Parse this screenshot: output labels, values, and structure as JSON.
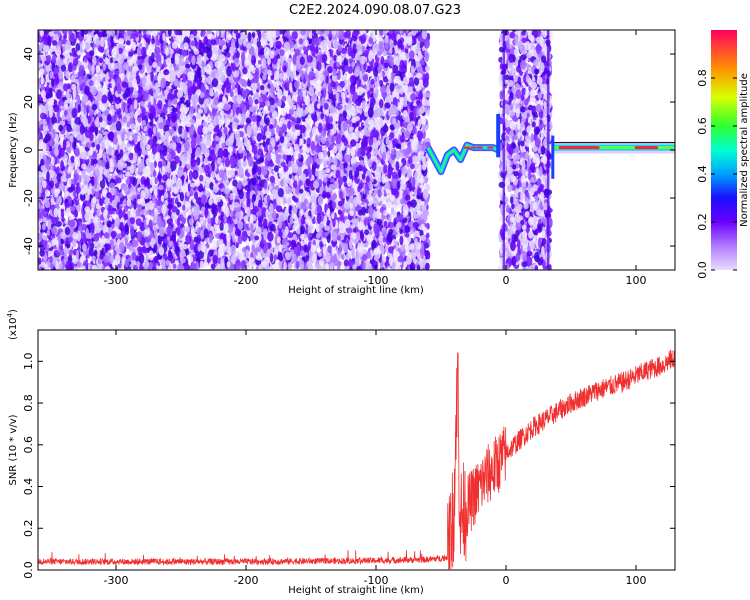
{
  "title": "C2E2.2024.090.08.07.G23",
  "colors": {
    "spectrogram_ramp": [
      "#c9b3ff",
      "#7a1fff",
      "#2a18ff",
      "#00a0ff",
      "#00ffd0",
      "#40ff40",
      "#ffff00",
      "#ff8000",
      "#ff0040"
    ],
    "snr_line": "#f03030"
  },
  "chart_data": [
    {
      "type": "heatmap",
      "name": "spectrogram",
      "xlabel": "Height of straight line (km)",
      "ylabel": "Frequency (Hz)",
      "xlim": [
        -360,
        130
      ],
      "ylim": [
        -50,
        50
      ],
      "xticks": [
        -300,
        -200,
        -100,
        0,
        100
      ],
      "yticks": [
        -40,
        -20,
        0,
        20,
        40
      ],
      "colorbar": {
        "label": "Normalized spectral amplitude",
        "range": [
          0,
          1
        ],
        "ticks": [
          0.0,
          0.2,
          0.4,
          0.6,
          0.8
        ]
      },
      "noise_regions_km": [
        [
          -360,
          -60
        ],
        [
          -4,
          34
        ]
      ],
      "narrowband_trace": {
        "x": [
          -60,
          -55,
          -50,
          -45,
          -40,
          -35,
          -30,
          -25,
          -20,
          -15,
          -10,
          -6
        ],
        "y": [
          1,
          -4,
          -9,
          -2,
          0,
          -4,
          2,
          1,
          1,
          1,
          1,
          0
        ]
      },
      "tone": {
        "x_range": [
          36,
          130
        ],
        "y": 1
      }
    },
    {
      "type": "line",
      "name": "snr",
      "xlabel": "Height of straight line (km)",
      "ylabel": "SNR (10 * v/v)",
      "ylabel_multiplier": "(x10",
      "ylabel_exponent": "4",
      "ylabel_suffix": ")",
      "xlim": [
        -360,
        130
      ],
      "ylim": [
        0,
        1.15
      ],
      "xticks": [
        -300,
        -200,
        -100,
        0,
        100
      ],
      "yticks": [
        0.0,
        0.2,
        0.4,
        0.6,
        0.8,
        1.0
      ],
      "x": [
        -360,
        -300,
        -200,
        -100,
        -60,
        -45,
        -40,
        -38,
        -35,
        -30,
        -25,
        -20,
        -15,
        -10,
        -5,
        0,
        10,
        20,
        30,
        40,
        50,
        60,
        70,
        80,
        90,
        100,
        110,
        120,
        130
      ],
      "y": [
        0.04,
        0.04,
        0.04,
        0.045,
        0.05,
        0.06,
        0.3,
        0.85,
        0.25,
        0.3,
        0.35,
        0.4,
        0.45,
        0.48,
        0.52,
        0.56,
        0.62,
        0.68,
        0.72,
        0.76,
        0.8,
        0.83,
        0.86,
        0.88,
        0.9,
        0.93,
        0.96,
        0.98,
        1.02
      ]
    }
  ]
}
